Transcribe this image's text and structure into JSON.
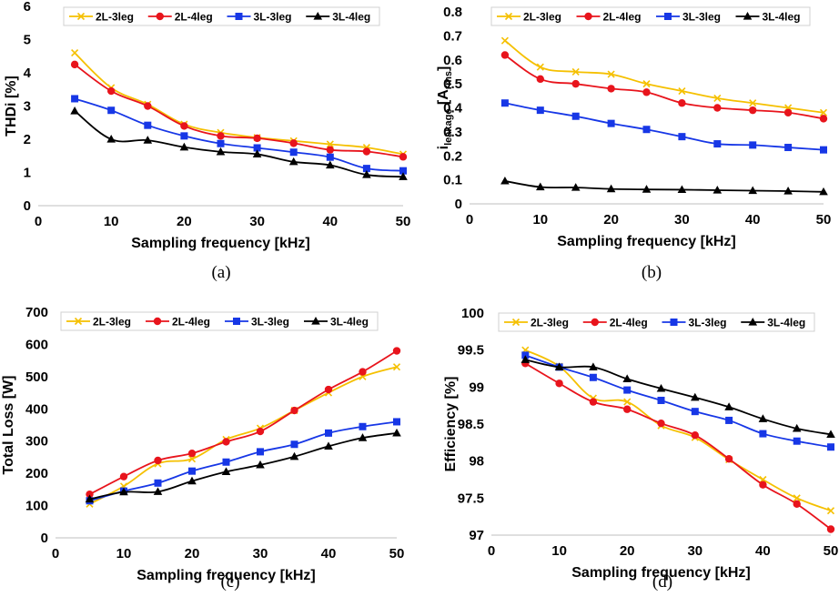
{
  "colors": {
    "2L-3leg": "#f5c000",
    "2L-4leg": "#e8141c",
    "3L-3leg": "#1737e6",
    "3L-4leg": "#000000"
  },
  "chart_data": [
    {
      "id": "a",
      "type": "line",
      "caption": "(a)",
      "xlabel": "Sampling frequency [kHz]",
      "ylabel": "THDi [%]",
      "ylabel_sub": "",
      "ylabel_after": "",
      "xlim": [
        0,
        50
      ],
      "ylim": [
        0,
        6
      ],
      "xticks": [
        "0",
        "10",
        "20",
        "30",
        "40",
        "50"
      ],
      "yticks": [
        "0",
        "1",
        "2",
        "3",
        "4",
        "5",
        "6"
      ],
      "x": [
        5,
        10,
        15,
        20,
        25,
        30,
        35,
        40,
        45,
        50
      ],
      "series": [
        {
          "name": "2L-3leg",
          "marker": "x",
          "values": [
            4.6,
            3.55,
            3.05,
            2.45,
            2.2,
            2.05,
            1.95,
            1.85,
            1.75,
            1.55
          ]
        },
        {
          "name": "2L-4leg",
          "marker": "circle",
          "values": [
            4.25,
            3.45,
            3.0,
            2.4,
            2.1,
            2.03,
            1.88,
            1.68,
            1.63,
            1.47
          ]
        },
        {
          "name": "3L-3leg",
          "marker": "square",
          "values": [
            3.22,
            2.87,
            2.42,
            2.1,
            1.87,
            1.74,
            1.61,
            1.46,
            1.12,
            1.05
          ]
        },
        {
          "name": "3L-4leg",
          "marker": "triangle",
          "values": [
            2.85,
            2.0,
            1.97,
            1.76,
            1.62,
            1.55,
            1.32,
            1.22,
            0.93,
            0.87
          ]
        }
      ]
    },
    {
      "id": "b",
      "type": "line",
      "caption": "(b)",
      "xlabel": "Sampling frequency [kHz]",
      "ylabel": "i",
      "ylabel_sub": "leakage",
      "ylabel_after": " [A",
      "ylabel_sub2": "rms",
      "ylabel_end": "]",
      "xlim": [
        0,
        50
      ],
      "ylim": [
        0,
        0.8
      ],
      "xticks": [
        "0",
        "10",
        "20",
        "30",
        "40",
        "50"
      ],
      "yticks": [
        "0",
        "0.1",
        "0.2",
        "0.3",
        "0.4",
        "0.5",
        "0.6",
        "0.7",
        "0.8"
      ],
      "x": [
        5,
        10,
        15,
        20,
        25,
        30,
        35,
        40,
        45,
        50
      ],
      "series": [
        {
          "name": "2L-3leg",
          "marker": "x",
          "values": [
            0.68,
            0.57,
            0.55,
            0.54,
            0.5,
            0.47,
            0.44,
            0.42,
            0.4,
            0.38
          ]
        },
        {
          "name": "2L-4leg",
          "marker": "circle",
          "values": [
            0.62,
            0.52,
            0.5,
            0.48,
            0.465,
            0.42,
            0.4,
            0.39,
            0.38,
            0.355
          ]
        },
        {
          "name": "3L-3leg",
          "marker": "square",
          "values": [
            0.42,
            0.39,
            0.365,
            0.335,
            0.31,
            0.28,
            0.25,
            0.245,
            0.235,
            0.225
          ]
        },
        {
          "name": "3L-4leg",
          "marker": "triangle",
          "values": [
            0.095,
            0.07,
            0.068,
            0.062,
            0.06,
            0.059,
            0.057,
            0.055,
            0.053,
            0.05
          ]
        }
      ]
    },
    {
      "id": "c",
      "type": "line",
      "caption": "(c)",
      "xlabel": "Sampling frequency [kHz]",
      "ylabel": "Total Loss [W]",
      "ylabel_sub": "",
      "ylabel_after": "",
      "xlim": [
        0,
        50
      ],
      "ylim": [
        0,
        700
      ],
      "xticks": [
        "0",
        "10",
        "20",
        "30",
        "40",
        "50"
      ],
      "yticks": [
        "0",
        "100",
        "200",
        "300",
        "400",
        "500",
        "600",
        "700"
      ],
      "x": [
        5,
        10,
        15,
        20,
        25,
        30,
        35,
        40,
        45,
        50
      ],
      "series": [
        {
          "name": "2L-3leg",
          "marker": "x",
          "values": [
            105,
            160,
            230,
            245,
            305,
            340,
            395,
            450,
            500,
            530
          ]
        },
        {
          "name": "2L-4leg",
          "marker": "circle",
          "values": [
            135,
            190,
            240,
            262,
            298,
            330,
            395,
            460,
            515,
            580
          ]
        },
        {
          "name": "3L-3leg",
          "marker": "square",
          "values": [
            115,
            145,
            170,
            207,
            235,
            267,
            290,
            325,
            345,
            360
          ]
        },
        {
          "name": "3L-4leg",
          "marker": "triangle",
          "values": [
            120,
            142,
            143,
            176,
            205,
            226,
            252,
            284,
            310,
            325
          ]
        }
      ]
    },
    {
      "id": "d",
      "type": "line",
      "caption": "(d)",
      "xlabel": "Sampling frequency [kHz]",
      "ylabel": "Efficiency  [%]",
      "ylabel_sub": "",
      "ylabel_after": "",
      "xlim": [
        0,
        50
      ],
      "ylim": [
        97,
        100
      ],
      "xticks": [
        "0",
        "10",
        "20",
        "30",
        "40",
        "50"
      ],
      "yticks": [
        "97",
        "97.5",
        "98",
        "98.5",
        "99",
        "99.5",
        "100"
      ],
      "x": [
        5,
        10,
        15,
        20,
        25,
        30,
        35,
        40,
        45,
        50
      ],
      "series": [
        {
          "name": "2L-3leg",
          "marker": "x",
          "values": [
            99.5,
            99.28,
            98.85,
            98.8,
            98.48,
            98.32,
            98.02,
            97.75,
            97.5,
            97.33
          ]
        },
        {
          "name": "2L-4leg",
          "marker": "circle",
          "values": [
            99.32,
            99.05,
            98.8,
            98.7,
            98.51,
            98.35,
            98.03,
            97.68,
            97.42,
            97.08
          ]
        },
        {
          "name": "3L-3leg",
          "marker": "square",
          "values": [
            99.43,
            99.27,
            99.13,
            98.96,
            98.82,
            98.67,
            98.55,
            98.37,
            98.27,
            98.19
          ]
        },
        {
          "name": "3L-4leg",
          "marker": "triangle",
          "values": [
            99.37,
            99.27,
            99.27,
            99.11,
            98.98,
            98.86,
            98.73,
            98.57,
            98.44,
            98.36
          ]
        }
      ]
    }
  ]
}
